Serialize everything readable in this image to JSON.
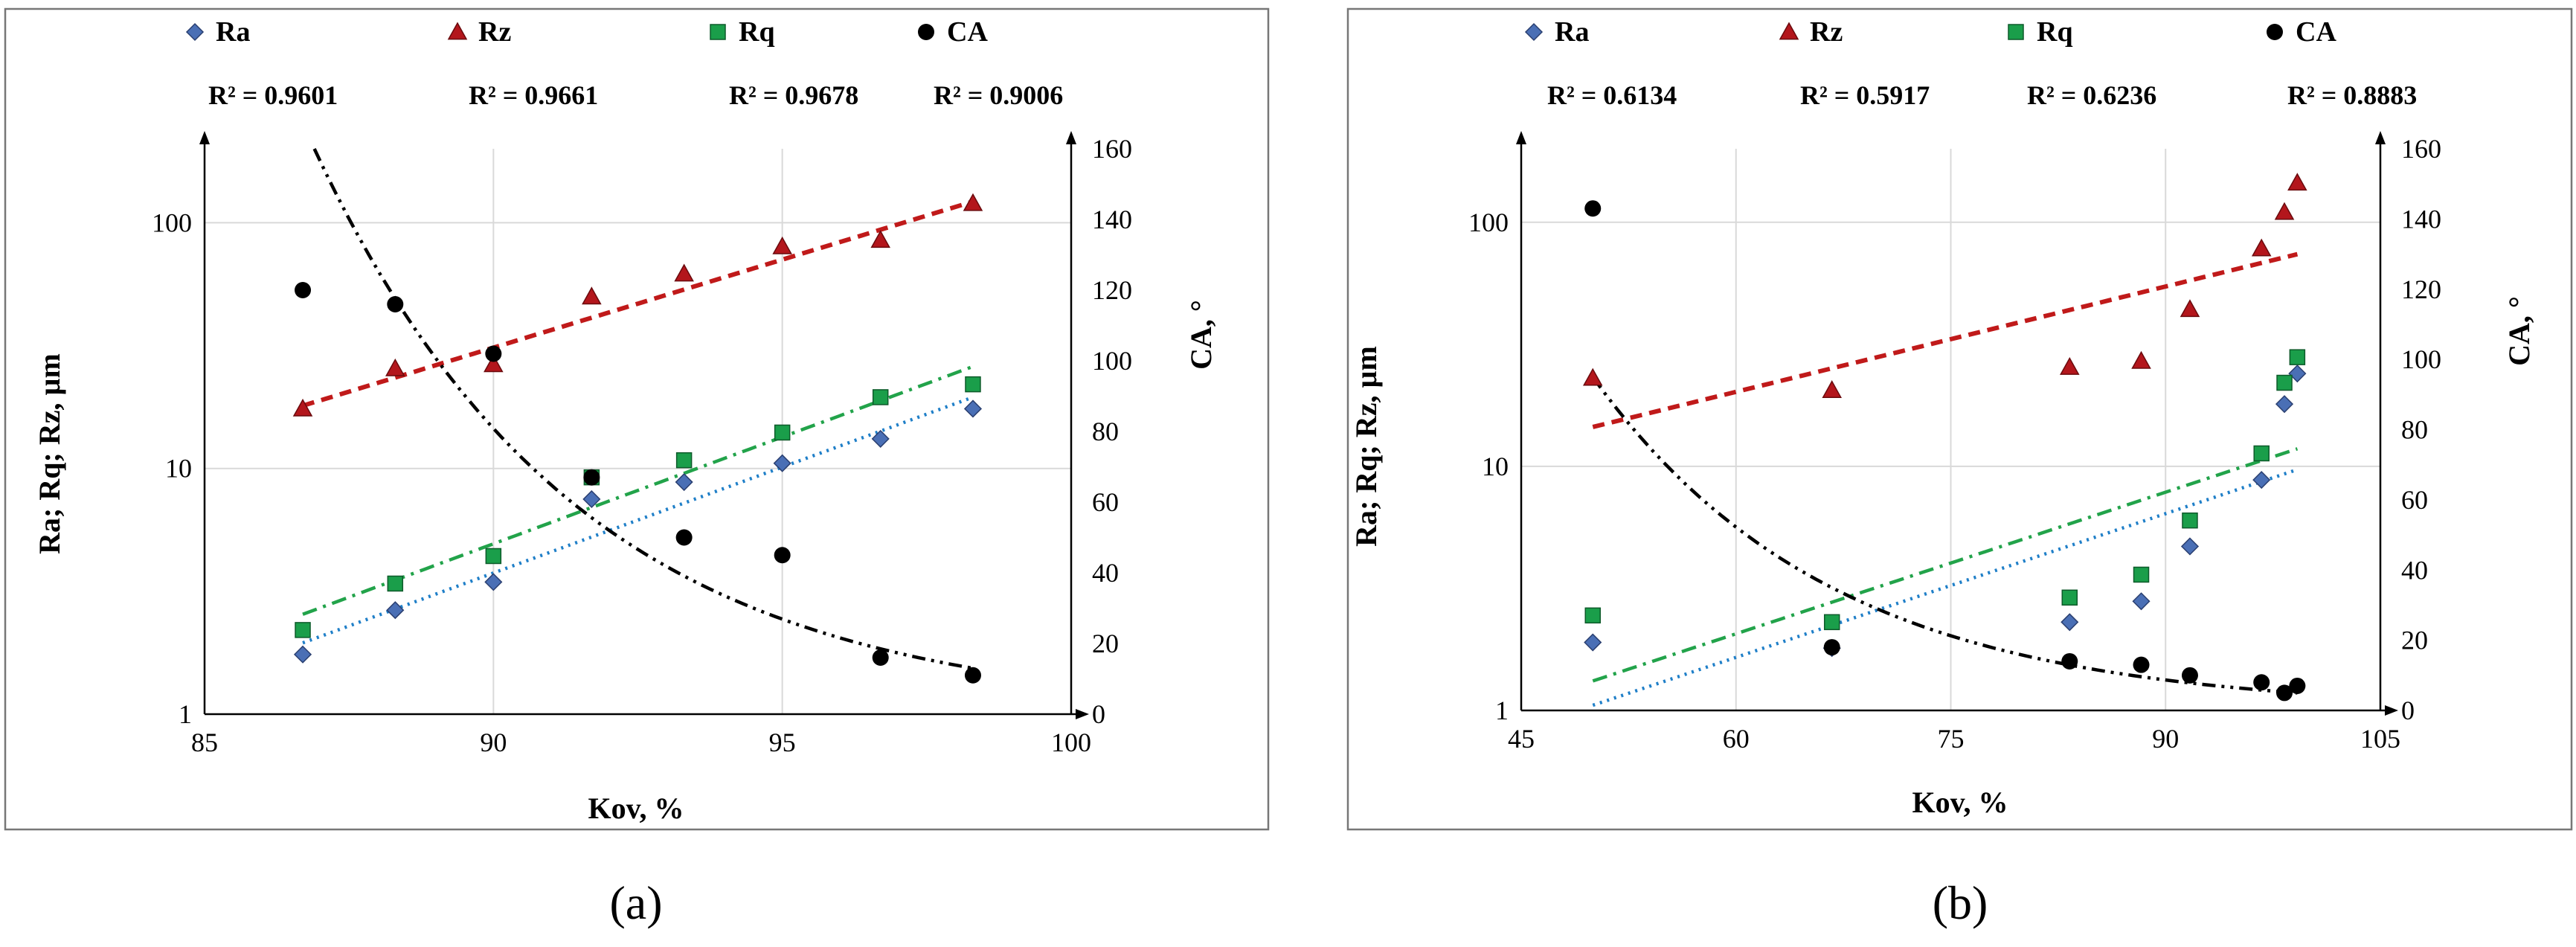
{
  "colors": {
    "Ra": "#4a6fb5",
    "Rz": "#b3161c",
    "Rq": "#1a9e4a",
    "CA": "#000000",
    "Ra_trend": "#1f7fc8",
    "Rq_trend": "#22a34a",
    "Rz_trend": "#c01a1a",
    "CA_trend": "#000000"
  },
  "chart_data": [
    {
      "type": "scatter",
      "panel_label": "(a)",
      "xlabel": "Kov,  %",
      "ylabel": "Ra; Rq; Rz, µm",
      "y2label": "CA, °",
      "x_ticks": [
        "85",
        "90",
        "95",
        "100"
      ],
      "x_range": [
        85,
        100
      ],
      "y_scale": "log",
      "y_range": [
        1,
        200
      ],
      "y_ticks": [
        1,
        10,
        100
      ],
      "y_tick_labels": [
        "1",
        "10",
        "100"
      ],
      "y2_range": [
        0,
        160
      ],
      "y2_ticks": [
        "0",
        "20",
        "40",
        "60",
        "80",
        "100",
        "120",
        "140",
        "160"
      ],
      "legend": [
        {
          "series": "Ra",
          "label": "Ra",
          "r2": "R² = 0.9601"
        },
        {
          "series": "Rz",
          "label": "Rz",
          "r2": "R² = 0.9661"
        },
        {
          "series": "Rq",
          "label": "Rq",
          "r2": "R² = 0.9678"
        },
        {
          "series": "CA",
          "label": "CA",
          "r2": "R² = 0.9006"
        }
      ],
      "series": [
        {
          "name": "Ra",
          "marker": "diamond",
          "axis": "left",
          "x": [
            86.7,
            88.3,
            90.0,
            91.7,
            93.3,
            95.0,
            96.7,
            98.3
          ],
          "y": [
            1.75,
            2.65,
            3.45,
            7.5,
            8.8,
            10.5,
            13.2,
            17.5
          ]
        },
        {
          "name": "Rz",
          "marker": "triangle",
          "axis": "left",
          "x": [
            86.7,
            88.3,
            90.0,
            91.7,
            93.3,
            95.0,
            96.7,
            98.3
          ],
          "y": [
            17.5,
            25.5,
            26.5,
            50,
            62,
            80,
            85,
            120
          ]
        },
        {
          "name": "Rq",
          "marker": "square",
          "axis": "left",
          "x": [
            86.7,
            88.3,
            90.0,
            91.7,
            93.3,
            95.0,
            96.7,
            98.3
          ],
          "y": [
            2.2,
            3.4,
            4.4,
            9.2,
            10.8,
            14,
            19.5,
            22
          ]
        },
        {
          "name": "CA",
          "marker": "circle",
          "axis": "right",
          "x": [
            86.7,
            88.3,
            90.0,
            91.7,
            93.3,
            95.0,
            96.7,
            98.3
          ],
          "y": [
            120,
            116,
            102,
            67,
            50,
            45,
            16,
            11
          ]
        }
      ],
      "trendlines": [
        {
          "series": "Ra",
          "kind": "exp",
          "style": "dotted",
          "axis": "left",
          "x_range": [
            86.7,
            98.3
          ],
          "y_start": 1.95,
          "y_end": 19.5
        },
        {
          "series": "Rq",
          "kind": "exp",
          "style": "dashdot",
          "axis": "left",
          "x_range": [
            86.7,
            98.3
          ],
          "y_start": 2.55,
          "y_end": 26
        },
        {
          "series": "Rz",
          "kind": "exp",
          "style": "dashed",
          "axis": "left",
          "x_range": [
            86.7,
            98.3
          ],
          "y_start": 18,
          "y_end": 122
        },
        {
          "series": "CA",
          "kind": "exp",
          "style": "dashdotdot",
          "axis": "right",
          "x_range": [
            86.9,
            98.3
          ],
          "y_start": 160,
          "y_end": 13
        }
      ]
    },
    {
      "type": "scatter",
      "panel_label": "(b)",
      "xlabel": "Kov, %",
      "ylabel": "Ra; Rq; Rz, µm",
      "y2label": "CA, °",
      "x_ticks": [
        "45",
        "60",
        "75",
        "90",
        "105"
      ],
      "x_range": [
        45,
        105
      ],
      "y_scale": "log",
      "y_range": [
        1,
        200
      ],
      "y_ticks": [
        1,
        10,
        100
      ],
      "y_tick_labels": [
        "1",
        "10",
        "100"
      ],
      "y2_range": [
        0,
        160
      ],
      "y2_ticks": [
        "0",
        "20",
        "40",
        "60",
        "80",
        "100",
        "120",
        "140",
        "160"
      ],
      "legend": [
        {
          "series": "Ra",
          "label": "Ra",
          "r2": "R² = 0.6134"
        },
        {
          "series": "Rz",
          "label": "Rz",
          "r2": "R² = 0.5917"
        },
        {
          "series": "Rq",
          "label": "Rq",
          "r2": "R² = 0.6236"
        },
        {
          "series": "CA",
          "label": "CA",
          "r2": "R² = 0.8883"
        }
      ],
      "series": [
        {
          "name": "Ra",
          "marker": "diamond",
          "axis": "left",
          "x": [
            50,
            66.7,
            83.3,
            88.3,
            91.7,
            96.7,
            98.3,
            99.2
          ],
          "y": [
            1.9,
            1.8,
            2.3,
            2.8,
            4.7,
            8.8,
            18,
            24
          ]
        },
        {
          "name": "Rz",
          "marker": "triangle",
          "axis": "left",
          "x": [
            50,
            66.7,
            83.3,
            88.3,
            91.7,
            96.7,
            98.3,
            99.2
          ],
          "y": [
            23,
            20.5,
            25.5,
            27,
            44,
            78,
            110,
            145
          ]
        },
        {
          "name": "Rq",
          "marker": "square",
          "axis": "left",
          "x": [
            50,
            66.7,
            83.3,
            88.3,
            91.7,
            96.7,
            98.3,
            99.2
          ],
          "y": [
            2.45,
            2.3,
            2.9,
            3.6,
            6,
            11.3,
            22,
            28
          ]
        },
        {
          "name": "CA",
          "marker": "circle",
          "axis": "right",
          "x": [
            50,
            66.7,
            83.3,
            88.3,
            91.7,
            96.7,
            98.3,
            99.2
          ],
          "y": [
            143,
            18,
            14,
            13,
            10,
            8,
            5,
            7
          ]
        }
      ],
      "trendlines": [
        {
          "series": "Ra",
          "kind": "exp",
          "style": "dotted",
          "axis": "left",
          "x_range": [
            50,
            99.2
          ],
          "y_start": 1.05,
          "y_end": 9.7
        },
        {
          "series": "Rq",
          "kind": "exp",
          "style": "dashdot",
          "axis": "left",
          "x_range": [
            50,
            99.2
          ],
          "y_start": 1.32,
          "y_end": 11.8
        },
        {
          "series": "Rz",
          "kind": "exp",
          "style": "dashed",
          "axis": "left",
          "x_range": [
            50,
            99.2
          ],
          "y_start": 14.5,
          "y_end": 74
        },
        {
          "series": "CA",
          "kind": "exp",
          "style": "dashdotdot",
          "axis": "right",
          "x_range": [
            50,
            99.2
          ],
          "y_start": 95,
          "y_end": 5
        }
      ]
    }
  ]
}
